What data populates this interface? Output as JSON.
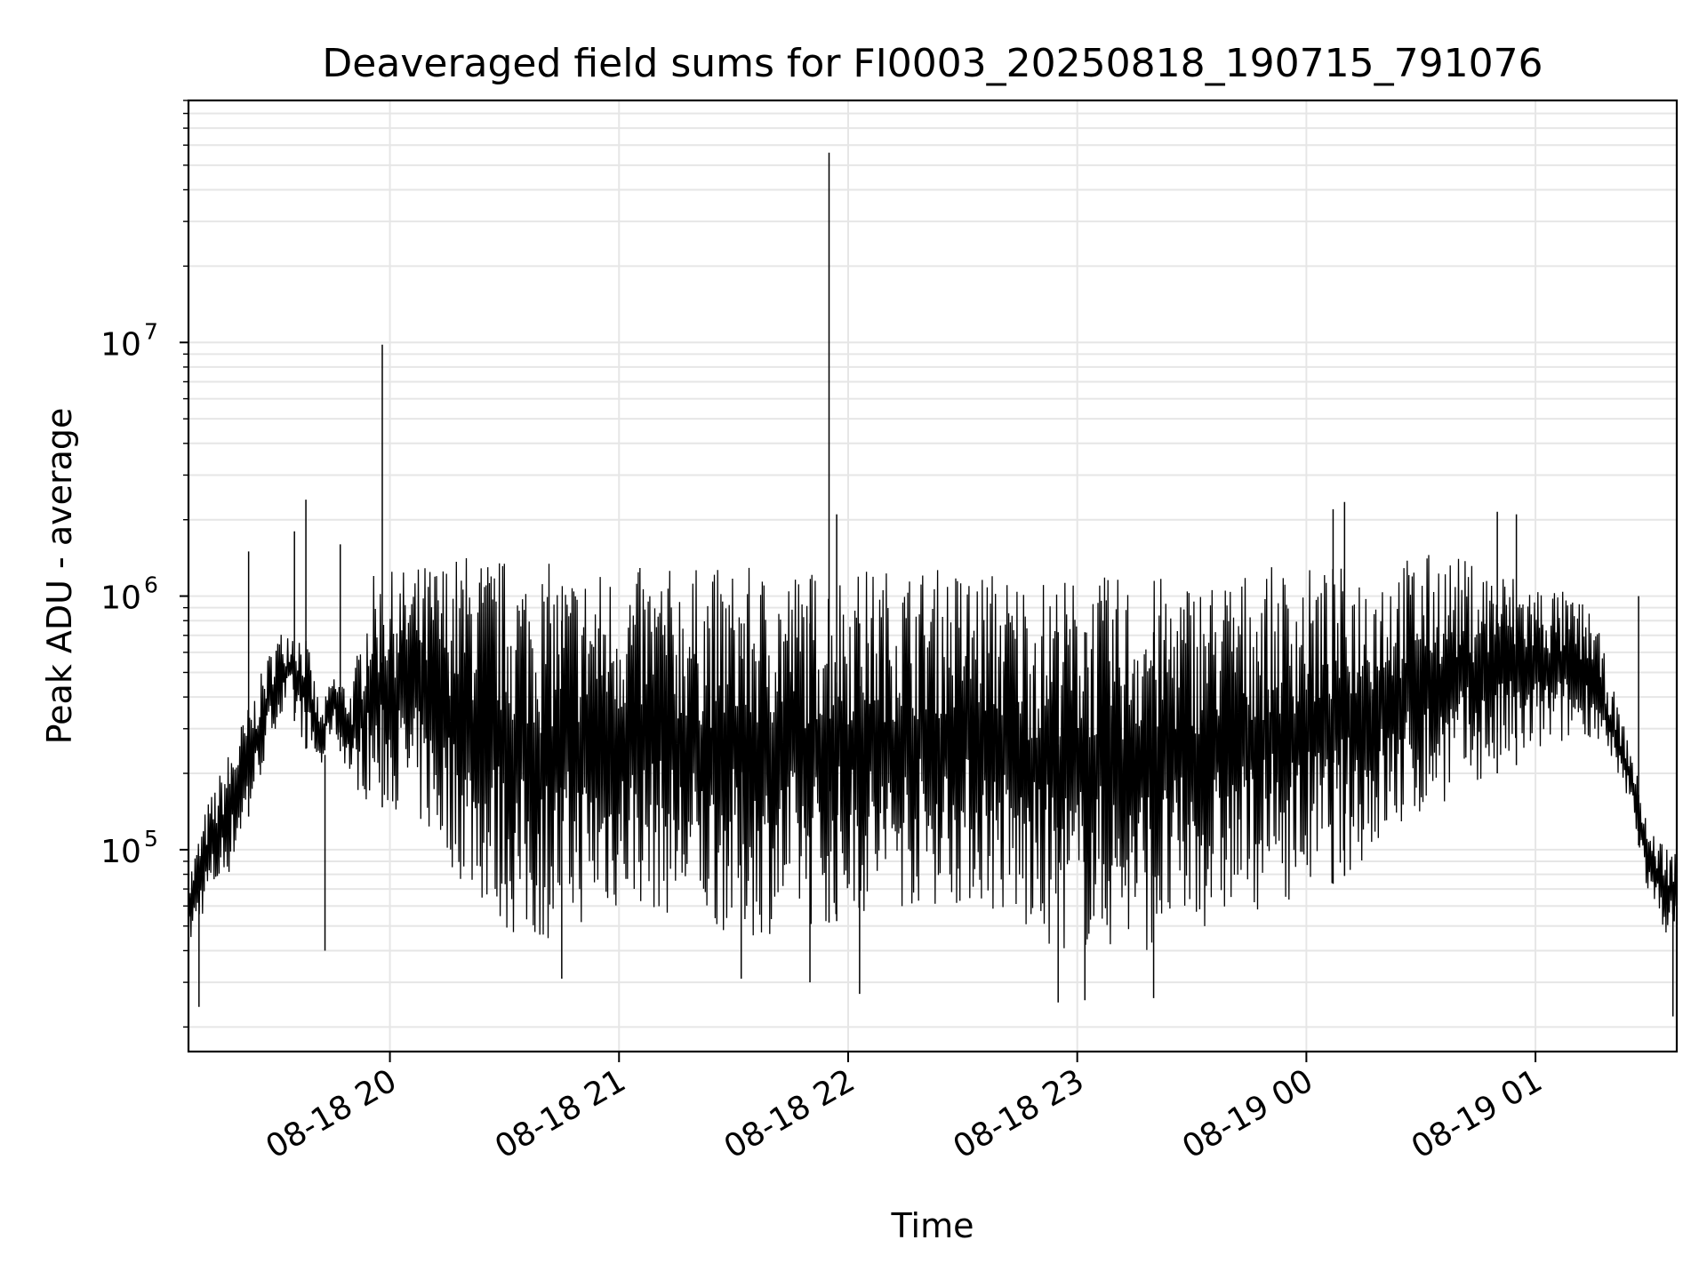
{
  "chart_data": {
    "type": "line",
    "title": "Deaveraged field sums for FI0003_20250818_190715_791076",
    "xlabel": "Time",
    "ylabel": "Peak ADU - average",
    "yscale": "log",
    "ylim": [
      16000,
      90000000
    ],
    "xlim": [
      "2025-08-18 19:07:15",
      "2025-08-19 01:37:00"
    ],
    "grid": true,
    "line_color": "#000000",
    "grid_color": "#e6e6e6",
    "x_ticks": [
      {
        "value": "2025-08-18 20:00",
        "label": "08-18 20"
      },
      {
        "value": "2025-08-18 21:00",
        "label": "08-18 21"
      },
      {
        "value": "2025-08-18 22:00",
        "label": "08-18 22"
      },
      {
        "value": "2025-08-18 23:00",
        "label": "08-18 23"
      },
      {
        "value": "2025-08-19 00:00",
        "label": "08-19 00"
      },
      {
        "value": "2025-08-19 01:00",
        "label": "08-19 01"
      }
    ],
    "y_ticks": [
      {
        "value": 100000,
        "base": "10",
        "exp": "5"
      },
      {
        "value": 1000000,
        "base": "10",
        "exp": "6"
      },
      {
        "value": 10000000,
        "base": "10",
        "exp": "7"
      }
    ],
    "series": [
      {
        "x": [
          "2025-08-18 19:07:15",
          "2025-08-18 19:12",
          "2025-08-18 19:18",
          "2025-08-18 19:24",
          "2025-08-18 19:30",
          "2025-08-18 19:34",
          "2025-08-18 19:38",
          "2025-08-18 19:42",
          "2025-08-18 19:45",
          "2025-08-18 19:50",
          "2025-08-18 19:55",
          "2025-08-18 20:05",
          "2025-08-18 20:20",
          "2025-08-18 20:35",
          "2025-08-18 20:50",
          "2025-08-18 21:05",
          "2025-08-18 21:20",
          "2025-08-18 21:35",
          "2025-08-18 21:50",
          "2025-08-18 22:05",
          "2025-08-18 22:20",
          "2025-08-18 22:35",
          "2025-08-18 22:50",
          "2025-08-18 23:05",
          "2025-08-18 23:20",
          "2025-08-18 23:35",
          "2025-08-18 23:50",
          "2025-08-19 00:05",
          "2025-08-19 00:20",
          "2025-08-19 00:35",
          "2025-08-19 00:50",
          "2025-08-19 01:05",
          "2025-08-19 01:15",
          "2025-08-19 01:20",
          "2025-08-19 01:25",
          "2025-08-19 01:30",
          "2025-08-19 01:37"
        ],
        "low": [
          40000,
          60000,
          80000,
          150000,
          300000,
          350000,
          250000,
          200000,
          300000,
          180000,
          150000,
          140000,
          70000,
          40000,
          50000,
          60000,
          50000,
          45000,
          50000,
          55000,
          60000,
          60000,
          40000,
          40000,
          40000,
          50000,
          60000,
          70000,
          100000,
          150000,
          200000,
          250000,
          280000,
          200000,
          150000,
          60000,
          40000
        ],
        "high": [
          80000,
          150000,
          250000,
          400000,
          700000,
          800000,
          700000,
          350000,
          500000,
          450000,
          1200000,
          1300000,
          1500000,
          1400000,
          1300000,
          1300000,
          1300000,
          1300000,
          1300000,
          1300000,
          1300000,
          1300000,
          1200000,
          1200000,
          1200000,
          1200000,
          1300000,
          1300000,
          1400000,
          1500000,
          1300000,
          1100000,
          900000,
          450000,
          250000,
          120000,
          100000
        ]
      }
    ],
    "spikes": [
      {
        "x": "2025-08-18 19:23",
        "y": 1500000
      },
      {
        "x": "2025-08-18 19:35",
        "y": 1800000
      },
      {
        "x": "2025-08-18 19:38",
        "y": 2400000
      },
      {
        "x": "2025-08-18 19:47",
        "y": 1600000
      },
      {
        "x": "2025-08-18 19:58",
        "y": 9800000
      },
      {
        "x": "2025-08-18 21:55",
        "y": 56000000
      },
      {
        "x": "2025-08-18 21:57",
        "y": 2100000
      },
      {
        "x": "2025-08-19 00:07",
        "y": 2200000
      },
      {
        "x": "2025-08-19 00:10",
        "y": 2350000
      },
      {
        "x": "2025-08-19 00:50",
        "y": 2150000
      },
      {
        "x": "2025-08-19 00:55",
        "y": 2100000
      },
      {
        "x": "2025-08-19 01:27",
        "y": 1000000
      }
    ],
    "dips": [
      {
        "x": "2025-08-18 19:10",
        "y": 24000
      },
      {
        "x": "2025-08-18 19:43",
        "y": 40000
      },
      {
        "x": "2025-08-18 20:45",
        "y": 31000
      },
      {
        "x": "2025-08-18 21:32",
        "y": 31000
      },
      {
        "x": "2025-08-18 21:50",
        "y": 30000
      },
      {
        "x": "2025-08-18 22:03",
        "y": 27000
      },
      {
        "x": "2025-08-18 22:55",
        "y": 25000
      },
      {
        "x": "2025-08-18 23:02",
        "y": 25500
      },
      {
        "x": "2025-08-18 23:20",
        "y": 26000
      },
      {
        "x": "2025-08-19 01:36",
        "y": 22000
      }
    ]
  }
}
